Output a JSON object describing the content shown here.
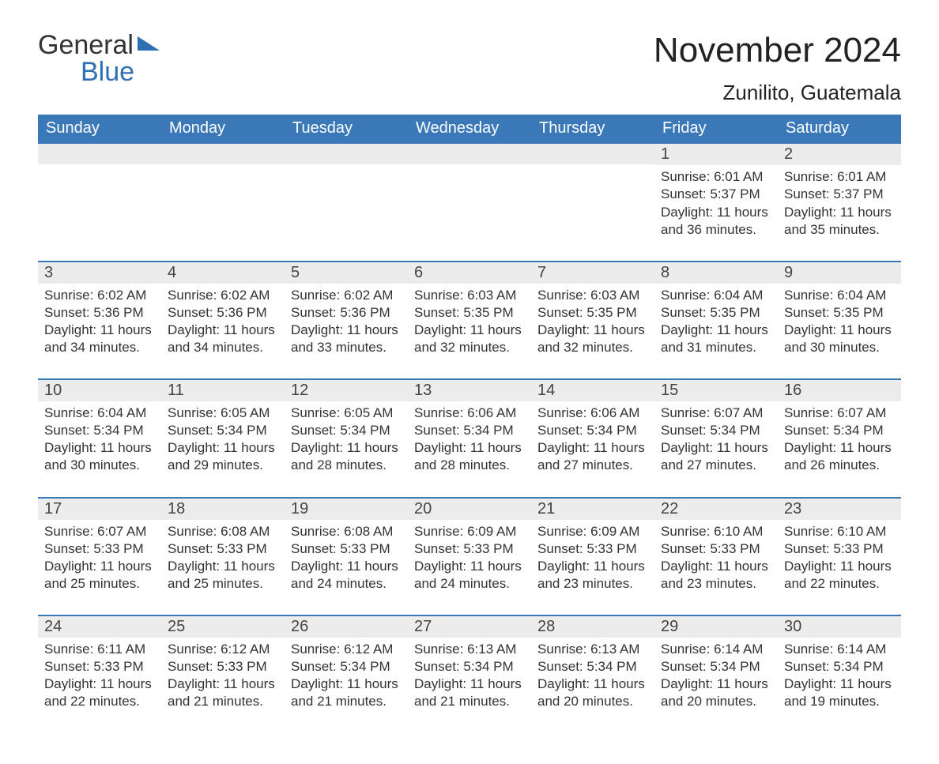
{
  "logo": {
    "general": "General",
    "blue": "Blue"
  },
  "title": "November 2024",
  "location": "Zunilito, Guatemala",
  "colors": {
    "header_bg": "#3b78b8",
    "header_text": "#ffffff",
    "daynum_bg": "#ececec",
    "row_border": "#3b78b8",
    "body_text": "#333333",
    "logo_blue": "#2f6fb3"
  },
  "days_of_week": [
    "Sunday",
    "Monday",
    "Tuesday",
    "Wednesday",
    "Thursday",
    "Friday",
    "Saturday"
  ],
  "weeks": [
    [
      null,
      null,
      null,
      null,
      null,
      {
        "n": "1",
        "sunrise": "Sunrise: 6:01 AM",
        "sunset": "Sunset: 5:37 PM",
        "day1": "Daylight: 11 hours",
        "day2": "and 36 minutes."
      },
      {
        "n": "2",
        "sunrise": "Sunrise: 6:01 AM",
        "sunset": "Sunset: 5:37 PM",
        "day1": "Daylight: 11 hours",
        "day2": "and 35 minutes."
      }
    ],
    [
      {
        "n": "3",
        "sunrise": "Sunrise: 6:02 AM",
        "sunset": "Sunset: 5:36 PM",
        "day1": "Daylight: 11 hours",
        "day2": "and 34 minutes."
      },
      {
        "n": "4",
        "sunrise": "Sunrise: 6:02 AM",
        "sunset": "Sunset: 5:36 PM",
        "day1": "Daylight: 11 hours",
        "day2": "and 34 minutes."
      },
      {
        "n": "5",
        "sunrise": "Sunrise: 6:02 AM",
        "sunset": "Sunset: 5:36 PM",
        "day1": "Daylight: 11 hours",
        "day2": "and 33 minutes."
      },
      {
        "n": "6",
        "sunrise": "Sunrise: 6:03 AM",
        "sunset": "Sunset: 5:35 PM",
        "day1": "Daylight: 11 hours",
        "day2": "and 32 minutes."
      },
      {
        "n": "7",
        "sunrise": "Sunrise: 6:03 AM",
        "sunset": "Sunset: 5:35 PM",
        "day1": "Daylight: 11 hours",
        "day2": "and 32 minutes."
      },
      {
        "n": "8",
        "sunrise": "Sunrise: 6:04 AM",
        "sunset": "Sunset: 5:35 PM",
        "day1": "Daylight: 11 hours",
        "day2": "and 31 minutes."
      },
      {
        "n": "9",
        "sunrise": "Sunrise: 6:04 AM",
        "sunset": "Sunset: 5:35 PM",
        "day1": "Daylight: 11 hours",
        "day2": "and 30 minutes."
      }
    ],
    [
      {
        "n": "10",
        "sunrise": "Sunrise: 6:04 AM",
        "sunset": "Sunset: 5:34 PM",
        "day1": "Daylight: 11 hours",
        "day2": "and 30 minutes."
      },
      {
        "n": "11",
        "sunrise": "Sunrise: 6:05 AM",
        "sunset": "Sunset: 5:34 PM",
        "day1": "Daylight: 11 hours",
        "day2": "and 29 minutes."
      },
      {
        "n": "12",
        "sunrise": "Sunrise: 6:05 AM",
        "sunset": "Sunset: 5:34 PM",
        "day1": "Daylight: 11 hours",
        "day2": "and 28 minutes."
      },
      {
        "n": "13",
        "sunrise": "Sunrise: 6:06 AM",
        "sunset": "Sunset: 5:34 PM",
        "day1": "Daylight: 11 hours",
        "day2": "and 28 minutes."
      },
      {
        "n": "14",
        "sunrise": "Sunrise: 6:06 AM",
        "sunset": "Sunset: 5:34 PM",
        "day1": "Daylight: 11 hours",
        "day2": "and 27 minutes."
      },
      {
        "n": "15",
        "sunrise": "Sunrise: 6:07 AM",
        "sunset": "Sunset: 5:34 PM",
        "day1": "Daylight: 11 hours",
        "day2": "and 27 minutes."
      },
      {
        "n": "16",
        "sunrise": "Sunrise: 6:07 AM",
        "sunset": "Sunset: 5:34 PM",
        "day1": "Daylight: 11 hours",
        "day2": "and 26 minutes."
      }
    ],
    [
      {
        "n": "17",
        "sunrise": "Sunrise: 6:07 AM",
        "sunset": "Sunset: 5:33 PM",
        "day1": "Daylight: 11 hours",
        "day2": "and 25 minutes."
      },
      {
        "n": "18",
        "sunrise": "Sunrise: 6:08 AM",
        "sunset": "Sunset: 5:33 PM",
        "day1": "Daylight: 11 hours",
        "day2": "and 25 minutes."
      },
      {
        "n": "19",
        "sunrise": "Sunrise: 6:08 AM",
        "sunset": "Sunset: 5:33 PM",
        "day1": "Daylight: 11 hours",
        "day2": "and 24 minutes."
      },
      {
        "n": "20",
        "sunrise": "Sunrise: 6:09 AM",
        "sunset": "Sunset: 5:33 PM",
        "day1": "Daylight: 11 hours",
        "day2": "and 24 minutes."
      },
      {
        "n": "21",
        "sunrise": "Sunrise: 6:09 AM",
        "sunset": "Sunset: 5:33 PM",
        "day1": "Daylight: 11 hours",
        "day2": "and 23 minutes."
      },
      {
        "n": "22",
        "sunrise": "Sunrise: 6:10 AM",
        "sunset": "Sunset: 5:33 PM",
        "day1": "Daylight: 11 hours",
        "day2": "and 23 minutes."
      },
      {
        "n": "23",
        "sunrise": "Sunrise: 6:10 AM",
        "sunset": "Sunset: 5:33 PM",
        "day1": "Daylight: 11 hours",
        "day2": "and 22 minutes."
      }
    ],
    [
      {
        "n": "24",
        "sunrise": "Sunrise: 6:11 AM",
        "sunset": "Sunset: 5:33 PM",
        "day1": "Daylight: 11 hours",
        "day2": "and 22 minutes."
      },
      {
        "n": "25",
        "sunrise": "Sunrise: 6:12 AM",
        "sunset": "Sunset: 5:33 PM",
        "day1": "Daylight: 11 hours",
        "day2": "and 21 minutes."
      },
      {
        "n": "26",
        "sunrise": "Sunrise: 6:12 AM",
        "sunset": "Sunset: 5:34 PM",
        "day1": "Daylight: 11 hours",
        "day2": "and 21 minutes."
      },
      {
        "n": "27",
        "sunrise": "Sunrise: 6:13 AM",
        "sunset": "Sunset: 5:34 PM",
        "day1": "Daylight: 11 hours",
        "day2": "and 21 minutes."
      },
      {
        "n": "28",
        "sunrise": "Sunrise: 6:13 AM",
        "sunset": "Sunset: 5:34 PM",
        "day1": "Daylight: 11 hours",
        "day2": "and 20 minutes."
      },
      {
        "n": "29",
        "sunrise": "Sunrise: 6:14 AM",
        "sunset": "Sunset: 5:34 PM",
        "day1": "Daylight: 11 hours",
        "day2": "and 20 minutes."
      },
      {
        "n": "30",
        "sunrise": "Sunrise: 6:14 AM",
        "sunset": "Sunset: 5:34 PM",
        "day1": "Daylight: 11 hours",
        "day2": "and 19 minutes."
      }
    ]
  ]
}
